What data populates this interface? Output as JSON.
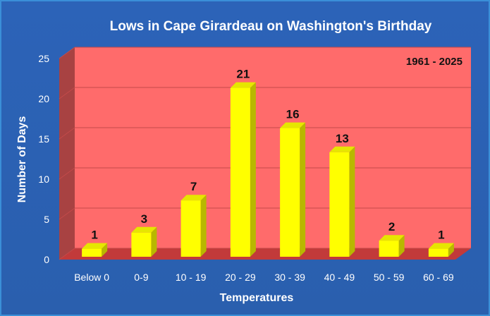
{
  "chart_data": {
    "type": "bar",
    "title": "Lows in Cape Girardeau on Washington's Birthday",
    "annotation": "1961 - 2025",
    "xlabel": "Temperatures",
    "ylabel": "Number of Days",
    "categories": [
      "Below 0",
      "0-9",
      "10 - 19",
      "20 - 29",
      "30 - 39",
      "40 - 49",
      "50 - 59",
      "60 - 69"
    ],
    "values": [
      1,
      3,
      7,
      21,
      16,
      13,
      2,
      1
    ],
    "ylim": [
      0,
      25
    ],
    "yticks": [
      0,
      5,
      10,
      15,
      20,
      25
    ],
    "grid": true,
    "legend": "none"
  },
  "colors": {
    "plot_background": "#ff6b6b",
    "plot_side_wall": "#a84242",
    "floor": "#c23a3a",
    "bar_front": "#ffff00",
    "bar_side": "#b8b800",
    "bar_top": "#e6e600",
    "gridline": "#c44a4a",
    "text": "#ffffff",
    "label": "#111111"
  }
}
